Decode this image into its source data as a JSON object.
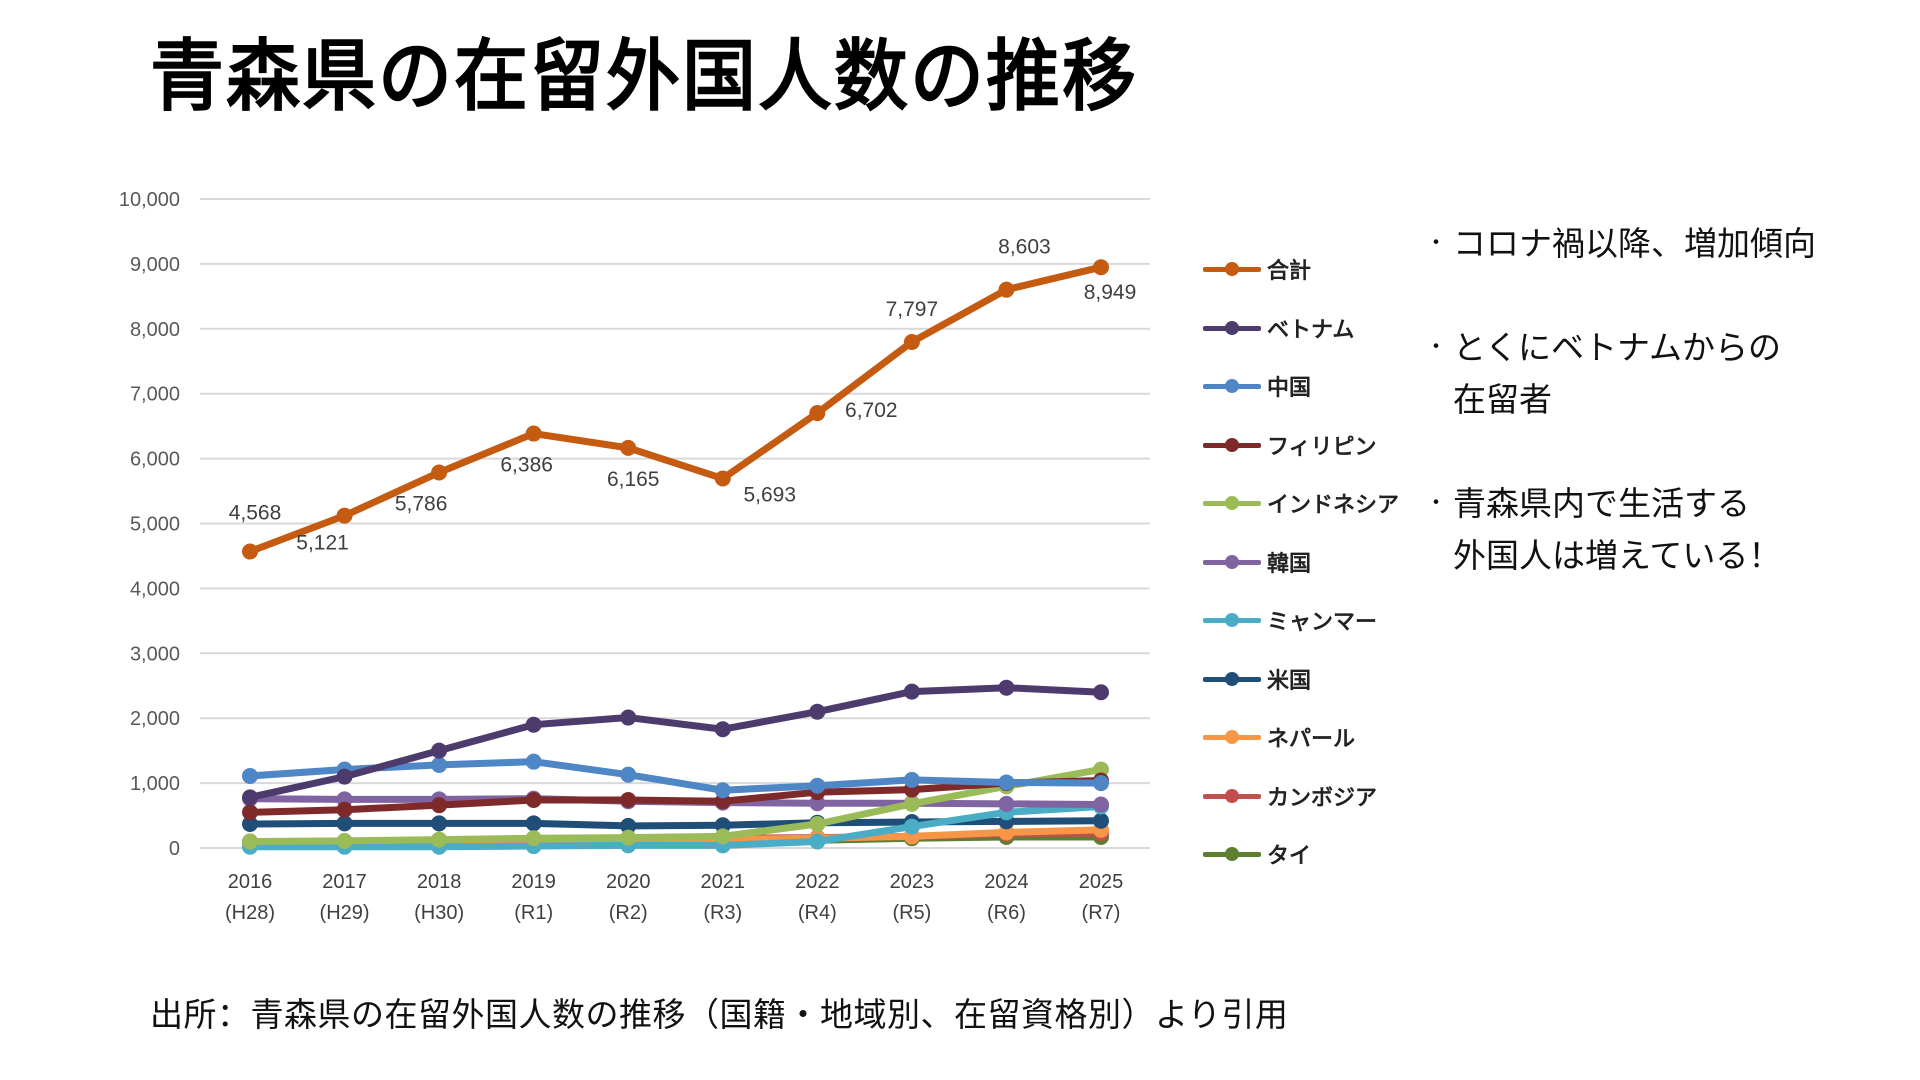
{
  "slide": {
    "title": "青森県の在留外国人数の推移",
    "source": "出所：青森県の在留外国人数の推移（国籍・地域別、在留資格別）より引用",
    "notes": [
      {
        "bullet": "・",
        "lines": [
          "コロナ禍以降、増加傾向"
        ]
      },
      {
        "bullet": "・",
        "lines": [
          "とくにベトナムからの",
          "在留者"
        ]
      },
      {
        "bullet": "・",
        "lines": [
          "青森県内で生活する",
          "外国人は増えている！"
        ]
      }
    ]
  },
  "chart_data": {
    "type": "line",
    "title": "",
    "xlabel": "",
    "ylabel": "",
    "ylim": [
      0,
      10000
    ],
    "yticks": [
      0,
      1000,
      2000,
      3000,
      4000,
      5000,
      6000,
      7000,
      8000,
      9000,
      10000
    ],
    "ytick_labels": [
      "0",
      "1,000",
      "2,000",
      "3,000",
      "4,000",
      "5,000",
      "6,000",
      "7,000",
      "8,000",
      "9,000",
      "10,000"
    ],
    "grid": "horizontal",
    "legend_position": "right",
    "categories": [
      "2016",
      "2017",
      "2018",
      "2019",
      "2020",
      "2021",
      "2022",
      "2023",
      "2024",
      "2025"
    ],
    "category_sublabels": [
      "(H28)",
      "(H29)",
      "(H30)",
      "(R1)",
      "(R2)",
      "(R3)",
      "(R4)",
      "(R5)",
      "(R6)",
      "(R7)"
    ],
    "series": [
      {
        "name": "合計",
        "color": "#c55a11",
        "values": [
          4568,
          5121,
          5786,
          6386,
          6165,
          5693,
          6702,
          7797,
          8603,
          8949
        ],
        "data_labels": [
          "4,568",
          "5,121",
          "5,786",
          "6,386",
          "6,165",
          "5,693",
          "6,702",
          "7,797",
          "8,603",
          "8,949"
        ]
      },
      {
        "name": "ベトナム",
        "color": "#4e3b6e",
        "values": [
          780,
          1100,
          1500,
          1900,
          2010,
          1830,
          2100,
          2410,
          2470,
          2400
        ]
      },
      {
        "name": "中国",
        "color": "#4f86c6",
        "values": [
          1110,
          1210,
          1280,
          1330,
          1130,
          890,
          960,
          1050,
          1010,
          1000
        ]
      },
      {
        "name": "フィリピン",
        "color": "#7f2a2a",
        "values": [
          550,
          590,
          660,
          740,
          740,
          720,
          860,
          900,
          1000,
          1040
        ]
      },
      {
        "name": "インドネシア",
        "color": "#9bbb59",
        "values": [
          100,
          110,
          130,
          150,
          160,
          180,
          370,
          680,
          950,
          1210
        ]
      },
      {
        "name": "韓国",
        "color": "#8064a2",
        "values": [
          760,
          750,
          750,
          760,
          720,
          700,
          690,
          690,
          680,
          670
        ]
      },
      {
        "name": "ミャンマー",
        "color": "#4bacc6",
        "values": [
          20,
          20,
          20,
          30,
          40,
          40,
          100,
          330,
          550,
          640
        ]
      },
      {
        "name": "米国",
        "color": "#1f4e79",
        "values": [
          370,
          380,
          380,
          380,
          340,
          350,
          390,
          400,
          410,
          420
        ]
      },
      {
        "name": "ネパール",
        "color": "#f79646",
        "values": [
          60,
          70,
          80,
          100,
          120,
          130,
          150,
          180,
          240,
          280
        ]
      },
      {
        "name": "カンボジア",
        "color": "#c0504d",
        "values": [
          30,
          60,
          100,
          140,
          150,
          150,
          160,
          180,
          220,
          230
        ]
      },
      {
        "name": "タイ",
        "color": "#5e7f32",
        "values": [
          100,
          100,
          110,
          120,
          120,
          110,
          120,
          150,
          170,
          170
        ]
      }
    ]
  }
}
